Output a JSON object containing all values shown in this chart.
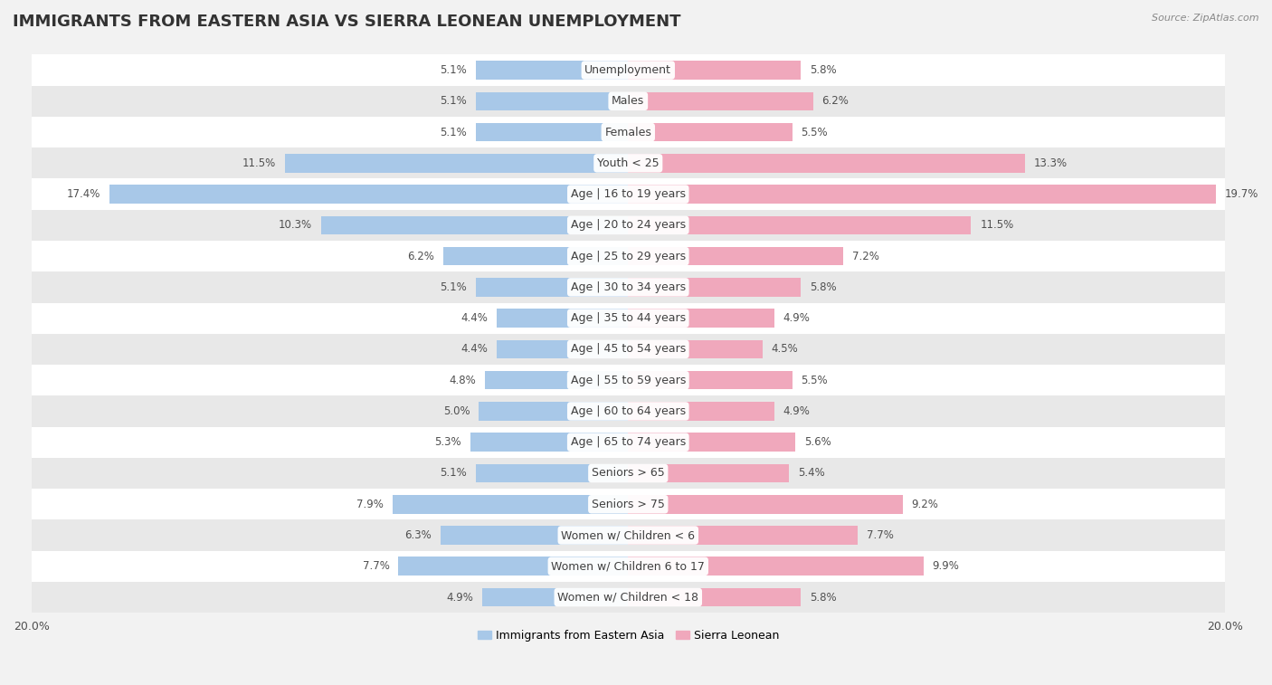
{
  "title": "IMMIGRANTS FROM EASTERN ASIA VS SIERRA LEONEAN UNEMPLOYMENT",
  "source": "Source: ZipAtlas.com",
  "categories": [
    "Unemployment",
    "Males",
    "Females",
    "Youth < 25",
    "Age | 16 to 19 years",
    "Age | 20 to 24 years",
    "Age | 25 to 29 years",
    "Age | 30 to 34 years",
    "Age | 35 to 44 years",
    "Age | 45 to 54 years",
    "Age | 55 to 59 years",
    "Age | 60 to 64 years",
    "Age | 65 to 74 years",
    "Seniors > 65",
    "Seniors > 75",
    "Women w/ Children < 6",
    "Women w/ Children 6 to 17",
    "Women w/ Children < 18"
  ],
  "left_values": [
    5.1,
    5.1,
    5.1,
    11.5,
    17.4,
    10.3,
    6.2,
    5.1,
    4.4,
    4.4,
    4.8,
    5.0,
    5.3,
    5.1,
    7.9,
    6.3,
    7.7,
    4.9
  ],
  "right_values": [
    5.8,
    6.2,
    5.5,
    13.3,
    19.7,
    11.5,
    7.2,
    5.8,
    4.9,
    4.5,
    5.5,
    4.9,
    5.6,
    5.4,
    9.2,
    7.7,
    9.9,
    5.8
  ],
  "left_color": "#a8c8e8",
  "right_color": "#f0a8bc",
  "left_label": "Immigrants from Eastern Asia",
  "right_label": "Sierra Leonean",
  "bg_color": "#f2f2f2",
  "row_bg_even": "#ffffff",
  "row_bg_odd": "#e8e8e8",
  "xlim": 20.0,
  "title_fontsize": 13,
  "label_fontsize": 9,
  "value_fontsize": 8.5,
  "bar_height": 0.6
}
